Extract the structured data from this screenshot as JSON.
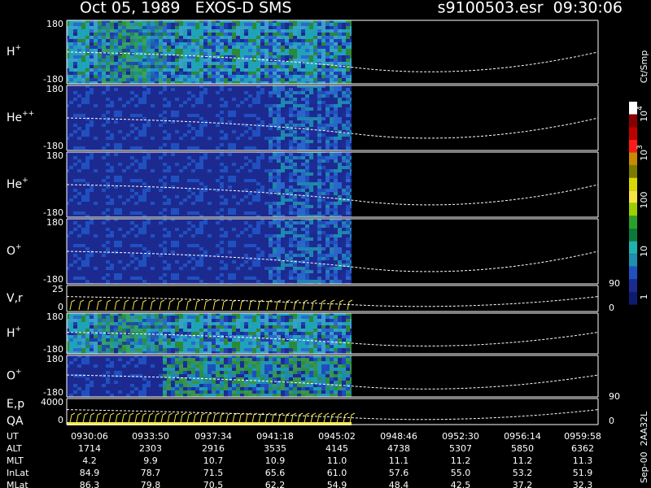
{
  "header": {
    "title": "Oct 05, 1989   EXOS-D SMS",
    "file": "s9100503.esr  09:30:06"
  },
  "panels": [
    {
      "label": [
        "H",
        "+"
      ],
      "left": [
        "180",
        "-180"
      ]
    },
    {
      "label": [
        "He",
        "++"
      ],
      "left": [
        "180",
        "-180"
      ]
    },
    {
      "label": [
        "He",
        "+"
      ],
      "left": [
        "180",
        "-180"
      ]
    },
    {
      "label": [
        "O",
        "+"
      ],
      "left": [
        "180",
        "-180"
      ]
    },
    {
      "label": [
        "V,r"
      ],
      "left": [
        "25",
        "0"
      ],
      "right": [
        "90",
        "0"
      ]
    },
    {
      "label": [
        "H",
        "+"
      ],
      "left": [
        "180",
        "-180"
      ]
    },
    {
      "label": [
        "O",
        "+"
      ],
      "left": [
        "180",
        "-180"
      ]
    },
    {
      "label": [
        "E,p"
      ],
      "label2": "QA",
      "left": [
        "4000",
        "0"
      ],
      "right": [
        "90",
        "0"
      ]
    }
  ],
  "colorbar": {
    "unit": "Ct/Smp",
    "labels": [
      [
        "10",
        "4"
      ],
      [
        "10",
        "3"
      ],
      [
        "100"
      ],
      [
        "10"
      ],
      [
        "1"
      ]
    ]
  },
  "footer": "Sep-00  2AA32L",
  "table": {
    "rows": [
      [
        "UT",
        "0930:06",
        "0933:50",
        "0937:34",
        "0941:18",
        "0945:02",
        "0948:46",
        "0952:30",
        "0956:14",
        "0959:58"
      ],
      [
        "ALT",
        "1714",
        "2303",
        "2916",
        "3535",
        "4145",
        "4738",
        "5307",
        "5850",
        "6362"
      ],
      [
        "MLT",
        "4.2",
        "9.9",
        "10.7",
        "10.9",
        "11.0",
        "11.1",
        "11.2",
        "11.2",
        "11.3"
      ],
      [
        "InLat",
        "84.9",
        "78.7",
        "71.5",
        "65.6",
        "61.0",
        "57.6",
        "55.0",
        "53.2",
        "51.9"
      ],
      [
        "MLat",
        "86.3",
        "79.8",
        "70.5",
        "62.2",
        "54.9",
        "48.4",
        "42.5",
        "37.2",
        "32.3"
      ]
    ]
  }
}
